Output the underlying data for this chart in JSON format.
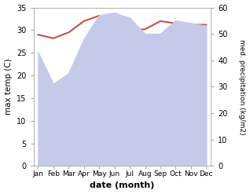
{
  "months": [
    "Jan",
    "Feb",
    "Mar",
    "Apr",
    "May",
    "Jun",
    "Jul",
    "Aug",
    "Sep",
    "Oct",
    "Nov",
    "Dec"
  ],
  "month_x": [
    0,
    1,
    2,
    3,
    4,
    5,
    6,
    7,
    8,
    9,
    10,
    11
  ],
  "temp_max": [
    29.0,
    28.2,
    29.5,
    32.0,
    33.2,
    32.5,
    30.0,
    30.2,
    32.0,
    31.5,
    31.2,
    31.2
  ],
  "precip": [
    43.0,
    31.0,
    35.0,
    48.0,
    57.0,
    58.0,
    56.0,
    50.0,
    50.0,
    55.0,
    54.0,
    53.0
  ],
  "temp_color": "#c9504a",
  "precip_fill_color": "#c5cae9",
  "temp_ylim": [
    0,
    35
  ],
  "precip_ylim": [
    0,
    60
  ],
  "temp_yticks": [
    0,
    5,
    10,
    15,
    20,
    25,
    30,
    35
  ],
  "precip_yticks": [
    0,
    10,
    20,
    30,
    40,
    50,
    60
  ],
  "xlabel": "date (month)",
  "ylabel_left": "max temp (C)",
  "ylabel_right": "med. precipitation (kg/m2)",
  "figsize": [
    3.18,
    2.47
  ],
  "dpi": 100
}
